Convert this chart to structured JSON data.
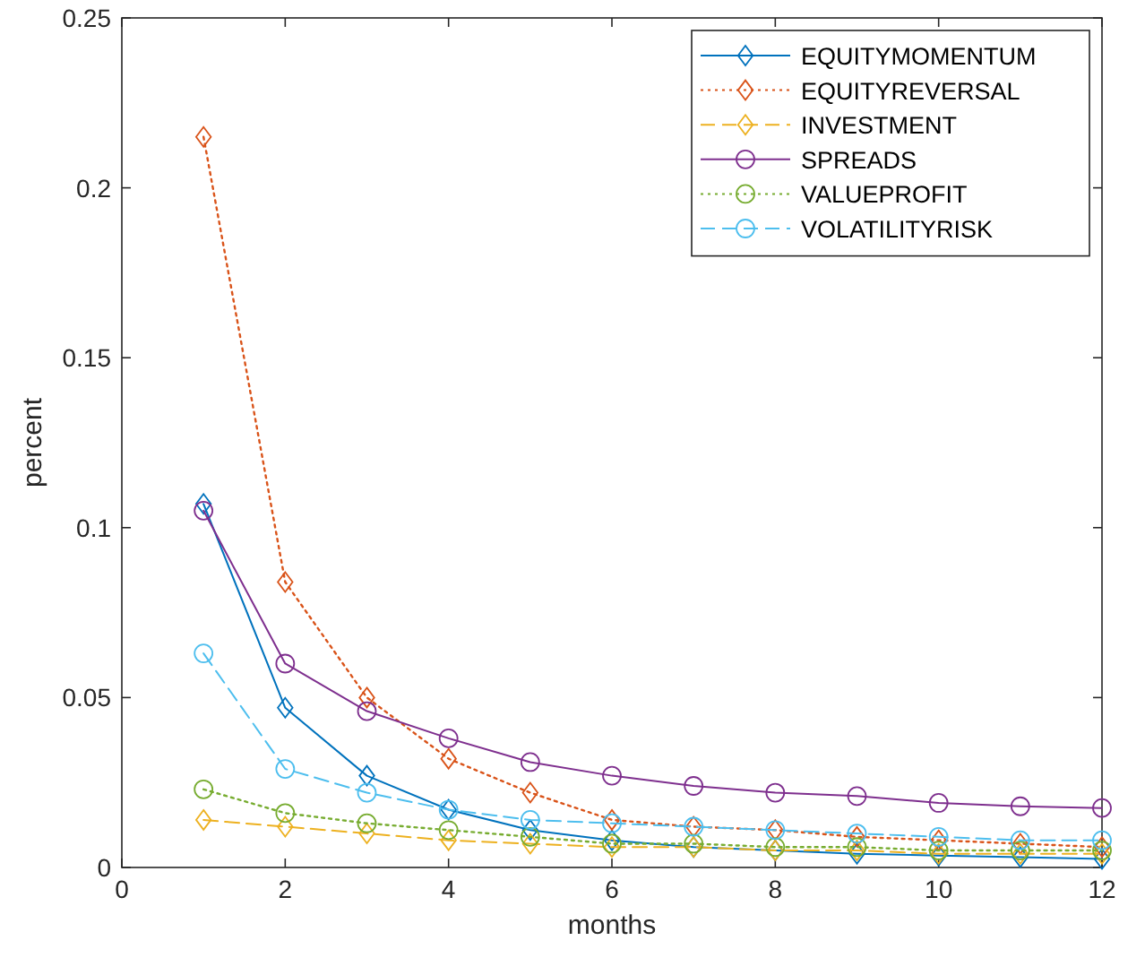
{
  "chart_data": {
    "type": "line",
    "xlabel": "months",
    "ylabel": "percent",
    "x": [
      1,
      2,
      3,
      4,
      5,
      6,
      7,
      8,
      9,
      10,
      11,
      12
    ],
    "xlim": [
      0,
      12
    ],
    "xticks": [
      0,
      2,
      4,
      6,
      8,
      10,
      12
    ],
    "ylim": [
      0,
      0.25
    ],
    "yticks": [
      0,
      0.05,
      0.1,
      0.15,
      0.2,
      0.25
    ],
    "grid": false,
    "legend": "top right",
    "series": [
      {
        "name": "EQUITYMOMENTUM",
        "color": "#0072bd",
        "marker": "diamond",
        "line_style": "solid",
        "values": [
          0.107,
          0.047,
          0.027,
          0.017,
          0.011,
          0.008,
          0.006,
          0.005,
          0.004,
          0.0035,
          0.003,
          0.0025
        ]
      },
      {
        "name": "EQUITYREVERSAL",
        "color": "#d95319",
        "marker": "diamond",
        "line_style": "dotted",
        "values": [
          0.215,
          0.084,
          0.05,
          0.032,
          0.022,
          0.014,
          0.012,
          0.011,
          0.009,
          0.008,
          0.007,
          0.006
        ]
      },
      {
        "name": "INVESTMENT",
        "color": "#edb120",
        "marker": "diamond",
        "line_style": "dashed",
        "values": [
          0.014,
          0.012,
          0.01,
          0.008,
          0.007,
          0.006,
          0.006,
          0.005,
          0.005,
          0.004,
          0.004,
          0.004
        ]
      },
      {
        "name": "SPREADS",
        "color": "#7e2f8e",
        "marker": "circle",
        "line_style": "solid",
        "values": [
          0.105,
          0.06,
          0.046,
          0.038,
          0.031,
          0.027,
          0.024,
          0.022,
          0.021,
          0.019,
          0.018,
          0.0175
        ]
      },
      {
        "name": "VALUEPROFIT",
        "color": "#77ac30",
        "marker": "circle",
        "line_style": "dotted",
        "values": [
          0.023,
          0.016,
          0.013,
          0.011,
          0.009,
          0.007,
          0.007,
          0.006,
          0.006,
          0.005,
          0.005,
          0.005
        ]
      },
      {
        "name": "VOLATILITYRISK",
        "color": "#4dbeee",
        "marker": "circle",
        "line_style": "dashed",
        "values": [
          0.063,
          0.029,
          0.022,
          0.017,
          0.014,
          0.013,
          0.012,
          0.011,
          0.01,
          0.009,
          0.008,
          0.008
        ]
      }
    ]
  }
}
